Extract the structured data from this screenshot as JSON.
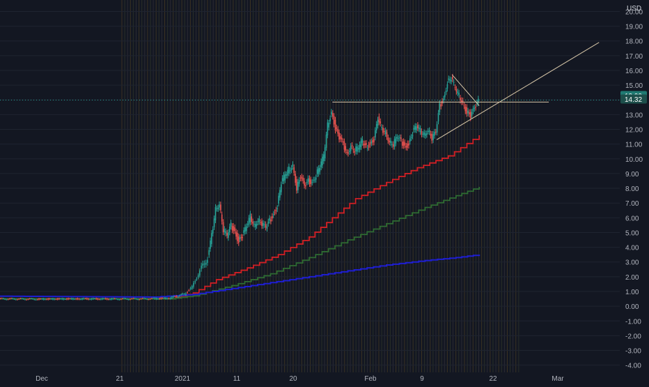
{
  "chart_data": {
    "type": "candlestick",
    "currency": "USD",
    "y_axis_ticks": [
      -4.0,
      -3.0,
      -2.0,
      -1.0,
      0.0,
      1.0,
      2.0,
      3.0,
      4.0,
      5.0,
      6.0,
      7.0,
      8.0,
      9.0,
      10.0,
      11.0,
      12.0,
      13.0,
      14.0,
      15.0,
      16.0,
      17.0,
      18.0,
      19.0,
      20.0
    ],
    "ylim": [
      -4.3,
      20.4
    ],
    "x_axis_ticks": [
      "Dec",
      "21",
      "2021",
      "11",
      "20",
      "Feb",
      "9",
      "22",
      "Mar"
    ],
    "price_labels": {
      "last_price": "13.99",
      "second_price": "14.32"
    },
    "colors": {
      "up": "#26a69a",
      "down": "#ef5350",
      "ma_red": "#d11f24",
      "ma_green": "#2e6b32",
      "ma_blue": "#1e1ed2",
      "drawing": "#d6c6a8",
      "price_line": "#26a69a",
      "price_tag": "#1f7a72",
      "background": "#131722"
    },
    "price_series": [
      {
        "t": 0,
        "price": 0.5
      },
      {
        "t": 10,
        "price": 0.48
      },
      {
        "t": 20,
        "price": 0.5
      },
      {
        "t": 30,
        "price": 0.49
      },
      {
        "t": 40,
        "price": 0.51
      },
      {
        "t": 44,
        "price": 0.55
      },
      {
        "t": 46,
        "price": 0.68
      },
      {
        "t": 48,
        "price": 0.82
      },
      {
        "t": 50,
        "price": 1.3
      },
      {
        "t": 52,
        "price": 2.4
      },
      {
        "t": 54,
        "price": 3.3
      },
      {
        "t": 55,
        "price": 4.8
      },
      {
        "t": 56,
        "price": 6.6
      },
      {
        "t": 57,
        "price": 7.0
      },
      {
        "t": 58,
        "price": 5.2
      },
      {
        "t": 59,
        "price": 4.8
      },
      {
        "t": 60,
        "price": 5.5
      },
      {
        "t": 61,
        "price": 5.0
      },
      {
        "t": 62,
        "price": 4.4
      },
      {
        "t": 63,
        "price": 4.8
      },
      {
        "t": 64,
        "price": 5.4
      },
      {
        "t": 65,
        "price": 6.1
      },
      {
        "t": 66,
        "price": 5.5
      },
      {
        "t": 67,
        "price": 5.9
      },
      {
        "t": 68,
        "price": 5.6
      },
      {
        "t": 69,
        "price": 5.3
      },
      {
        "t": 70,
        "price": 5.8
      },
      {
        "t": 71,
        "price": 6.2
      },
      {
        "t": 72,
        "price": 6.8
      },
      {
        "t": 73,
        "price": 8.4
      },
      {
        "t": 74,
        "price": 8.9
      },
      {
        "t": 75,
        "price": 9.3
      },
      {
        "t": 76,
        "price": 9.6
      },
      {
        "t": 77,
        "price": 8.0
      },
      {
        "t": 78,
        "price": 8.8
      },
      {
        "t": 79,
        "price": 8.1
      },
      {
        "t": 80,
        "price": 8.5
      },
      {
        "t": 81,
        "price": 8.4
      },
      {
        "t": 82,
        "price": 8.9
      },
      {
        "t": 83,
        "price": 9.5
      },
      {
        "t": 84,
        "price": 10.2
      },
      {
        "t": 85,
        "price": 12.3
      },
      {
        "t": 86,
        "price": 13.2
      },
      {
        "t": 87,
        "price": 12.1
      },
      {
        "t": 88,
        "price": 11.4
      },
      {
        "t": 89,
        "price": 11.0
      },
      {
        "t": 90,
        "price": 10.3
      },
      {
        "t": 91,
        "price": 10.9
      },
      {
        "t": 92,
        "price": 10.6
      },
      {
        "t": 93,
        "price": 10.8
      },
      {
        "t": 94,
        "price": 11.2
      },
      {
        "t": 95,
        "price": 10.8
      },
      {
        "t": 96,
        "price": 11.0
      },
      {
        "t": 97,
        "price": 11.3
      },
      {
        "t": 98,
        "price": 12.7
      },
      {
        "t": 99,
        "price": 12.0
      },
      {
        "t": 100,
        "price": 11.8
      },
      {
        "t": 101,
        "price": 11.2
      },
      {
        "t": 102,
        "price": 11.0
      },
      {
        "t": 103,
        "price": 11.5
      },
      {
        "t": 104,
        "price": 11.2
      },
      {
        "t": 105,
        "price": 10.8
      },
      {
        "t": 106,
        "price": 11.0
      },
      {
        "t": 107,
        "price": 11.8
      },
      {
        "t": 108,
        "price": 12.2
      },
      {
        "t": 109,
        "price": 11.9
      },
      {
        "t": 110,
        "price": 11.7
      },
      {
        "t": 111,
        "price": 12.0
      },
      {
        "t": 112,
        "price": 11.4
      },
      {
        "t": 113,
        "price": 11.8
      },
      {
        "t": 114,
        "price": 13.6
      },
      {
        "t": 115,
        "price": 14.0
      },
      {
        "t": 116,
        "price": 15.2
      },
      {
        "t": 117,
        "price": 15.5
      },
      {
        "t": 118,
        "price": 14.8
      },
      {
        "t": 119,
        "price": 14.3
      },
      {
        "t": 120,
        "price": 13.8
      },
      {
        "t": 121,
        "price": 13.2
      },
      {
        "t": 122,
        "price": 12.9
      },
      {
        "t": 123,
        "price": 13.4
      },
      {
        "t": 124,
        "price": 13.9
      }
    ],
    "moving_averages": [
      {
        "color": "#d11f24",
        "points": [
          [
            0,
            0.5
          ],
          [
            44,
            0.5
          ],
          [
            50,
            0.9
          ],
          [
            56,
            1.8
          ],
          [
            64,
            2.6
          ],
          [
            72,
            3.5
          ],
          [
            80,
            4.7
          ],
          [
            86,
            6.0
          ],
          [
            92,
            7.3
          ],
          [
            100,
            8.4
          ],
          [
            108,
            9.4
          ],
          [
            116,
            10.2
          ],
          [
            124,
            11.6
          ]
        ]
      },
      {
        "color": "#2e6b32",
        "points": [
          [
            0,
            0.5
          ],
          [
            44,
            0.5
          ],
          [
            50,
            0.7
          ],
          [
            60,
            1.4
          ],
          [
            70,
            2.2
          ],
          [
            80,
            3.3
          ],
          [
            90,
            4.5
          ],
          [
            100,
            5.6
          ],
          [
            110,
            6.7
          ],
          [
            118,
            7.5
          ],
          [
            124,
            8.1
          ]
        ]
      },
      {
        "color": "#1e1ed2",
        "points": [
          [
            0,
            0.68
          ],
          [
            40,
            0.62
          ],
          [
            50,
            0.8
          ],
          [
            60,
            1.2
          ],
          [
            70,
            1.6
          ],
          [
            80,
            2.0
          ],
          [
            90,
            2.4
          ],
          [
            100,
            2.8
          ],
          [
            110,
            3.1
          ],
          [
            118,
            3.3
          ],
          [
            124,
            3.5
          ]
        ]
      }
    ],
    "drawings": [
      {
        "kind": "horizontal-line",
        "from_t": 86,
        "to_t": 142,
        "price": 13.85
      },
      {
        "kind": "trend-line",
        "from": [
          113,
          11.3
        ],
        "to": [
          155,
          17.9
        ]
      },
      {
        "kind": "trend-line",
        "from": [
          117,
          15.7
        ],
        "to": [
          124,
          13.6
        ]
      }
    ]
  }
}
